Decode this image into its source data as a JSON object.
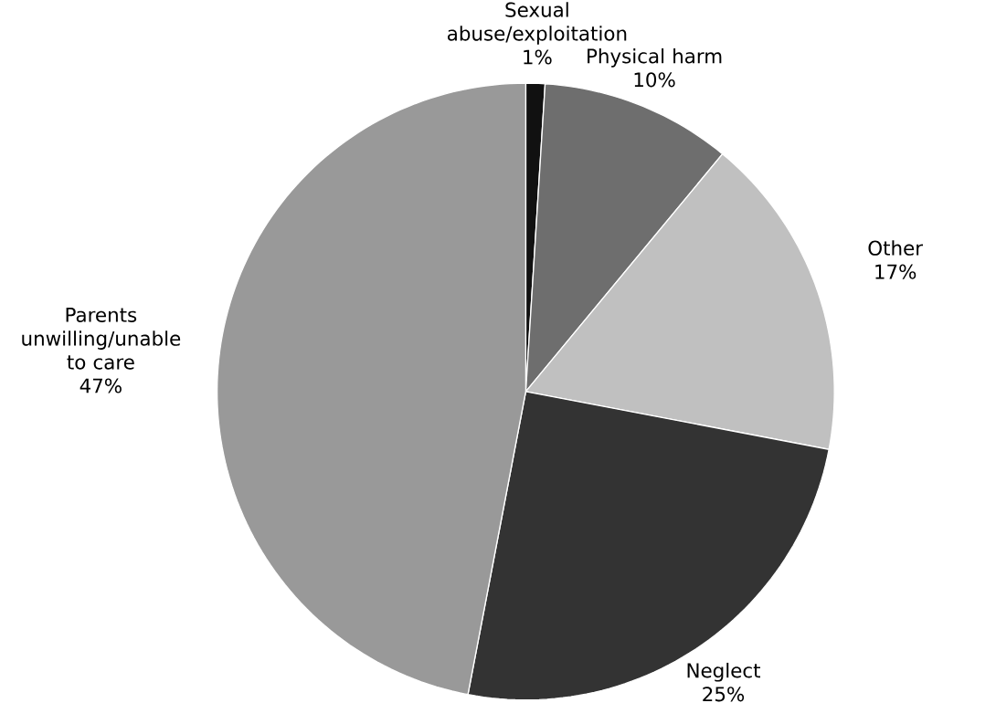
{
  "chart_data": {
    "type": "pie",
    "categories": [
      "Sexual abuse/exploitation",
      "Physical harm",
      "Other",
      "Neglect",
      "Parents unwilling/unable to care"
    ],
    "values": [
      1,
      10,
      17,
      25,
      47
    ],
    "value_labels": [
      "1%",
      "10%",
      "17%",
      "25%",
      "47%"
    ],
    "colors": [
      "#111111",
      "#6e6e6e",
      "#c0c0c0",
      "#333333",
      "#999999"
    ]
  }
}
